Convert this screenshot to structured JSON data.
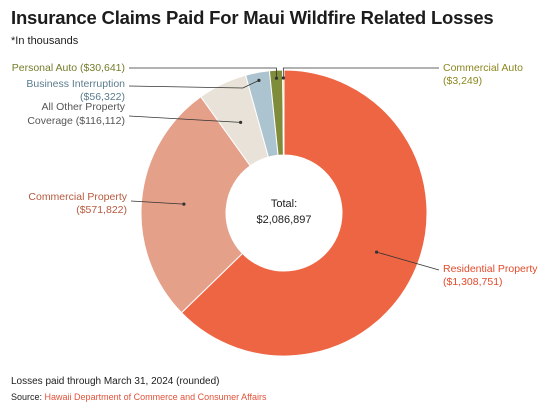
{
  "title": "Insurance Claims Paid For Maui Wildfire Related Losses",
  "note": "*In thousands",
  "footer": {
    "as_of": "Losses paid through March 31, 2024 (rounded)",
    "source_label": "Source:",
    "source_name": "Hawaii Department of Commerce and Consumer Affairs"
  },
  "chart_data": {
    "type": "pie",
    "donut": true,
    "center_label": "Total:",
    "center_value": "$2,086,897",
    "total": 2086897,
    "legend": "none",
    "slices": [
      {
        "name": "Residential Property",
        "label": "($1,308,751)",
        "value": 1308751,
        "color": "#ee6543",
        "text_color": "#e34b2c"
      },
      {
        "name": "Commercial Property",
        "label": "($571,822)",
        "value": 571822,
        "color": "#e5a08a",
        "text_color": "#b65a3f"
      },
      {
        "name": "All Other Property Coverage",
        "label": "($116,112)",
        "value": 116112,
        "color": "#e9e2d9",
        "text_color": "#555555"
      },
      {
        "name": "Business Interruption",
        "label": "($56,322)",
        "value": 56322,
        "color": "#acc4cf",
        "text_color": "#5b7c8e"
      },
      {
        "name": "Personal Auto",
        "label": "($30,641)",
        "value": 30641,
        "color": "#7f8c3a",
        "text_color": "#737d2a"
      },
      {
        "name": "Commercial Auto",
        "label": "($3,249)",
        "value": 3249,
        "color": "#c4bc3a",
        "text_color": "#8c8720"
      }
    ]
  }
}
